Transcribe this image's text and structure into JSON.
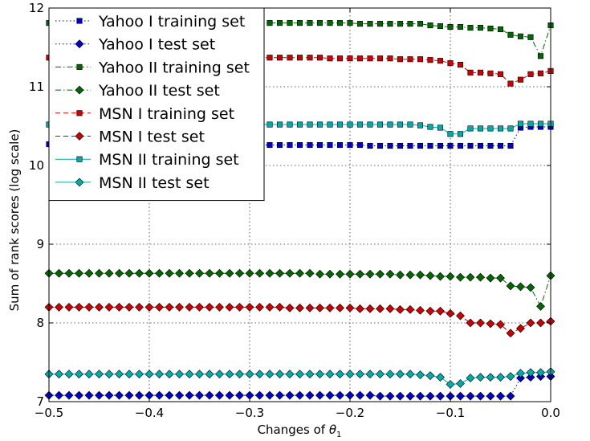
{
  "chart_data": {
    "type": "line",
    "xlabel": "Changes of",
    "xlabel_symbol": "θ",
    "xlabel_subscript": "1",
    "ylabel": "Sum of rank scores (log scale)",
    "xlim": [
      -0.5,
      0.0
    ],
    "ylim": [
      7,
      12
    ],
    "xticks": [
      -0.5,
      -0.4,
      -0.3,
      -0.2,
      -0.1,
      0.0
    ],
    "xtick_labels": [
      "−0.5",
      "−0.4",
      "−0.3",
      "−0.2",
      "−0.1",
      "0.0"
    ],
    "yticks": [
      7,
      8,
      9,
      10,
      11,
      12
    ],
    "ytick_labels": [
      "7",
      "8",
      "9",
      "10",
      "11",
      "12"
    ],
    "grid": true,
    "legend_position": "top-left",
    "x": [
      -0.5,
      -0.49,
      -0.48,
      -0.47,
      -0.46,
      -0.45,
      -0.44,
      -0.43,
      -0.42,
      -0.41,
      -0.4,
      -0.39,
      -0.38,
      -0.37,
      -0.36,
      -0.35,
      -0.34,
      -0.33,
      -0.32,
      -0.31,
      -0.3,
      -0.29,
      -0.28,
      -0.27,
      -0.26,
      -0.25,
      -0.24,
      -0.23,
      -0.22,
      -0.21,
      -0.2,
      -0.19,
      -0.18,
      -0.17,
      -0.16,
      -0.15,
      -0.14,
      -0.13,
      -0.12,
      -0.11,
      -0.1,
      -0.09,
      -0.08,
      -0.07,
      -0.06,
      -0.05,
      -0.04,
      -0.03,
      -0.02,
      -0.01,
      0.0
    ],
    "series": [
      {
        "name": "Yahoo I training set",
        "color": "#0000cc",
        "marker": "square",
        "linestyle": "dotted",
        "values": [
          10.27,
          10.27,
          10.27,
          10.27,
          10.27,
          10.27,
          10.27,
          10.27,
          10.27,
          10.27,
          10.27,
          10.27,
          10.27,
          10.27,
          10.27,
          10.27,
          10.27,
          10.27,
          10.27,
          10.27,
          10.26,
          10.26,
          10.26,
          10.26,
          10.26,
          10.26,
          10.26,
          10.26,
          10.26,
          10.26,
          10.26,
          10.26,
          10.25,
          10.25,
          10.25,
          10.25,
          10.25,
          10.25,
          10.25,
          10.25,
          10.25,
          10.25,
          10.25,
          10.25,
          10.25,
          10.25,
          10.25,
          10.48,
          10.49,
          10.49,
          10.49
        ]
      },
      {
        "name": "Yahoo I test set",
        "color": "#0000cc",
        "marker": "diamond",
        "linestyle": "dotted",
        "values": [
          7.08,
          7.08,
          7.08,
          7.08,
          7.08,
          7.08,
          7.08,
          7.08,
          7.08,
          7.08,
          7.08,
          7.08,
          7.08,
          7.08,
          7.08,
          7.08,
          7.08,
          7.08,
          7.08,
          7.08,
          7.08,
          7.08,
          7.08,
          7.08,
          7.08,
          7.08,
          7.08,
          7.08,
          7.08,
          7.08,
          7.08,
          7.08,
          7.08,
          7.07,
          7.07,
          7.07,
          7.07,
          7.07,
          7.07,
          7.07,
          7.07,
          7.07,
          7.07,
          7.07,
          7.07,
          7.07,
          7.07,
          7.3,
          7.31,
          7.32,
          7.32
        ]
      },
      {
        "name": "Yahoo II training set",
        "color": "#006600",
        "marker": "square",
        "linestyle": "dashdot",
        "values": [
          11.81,
          11.81,
          11.81,
          11.81,
          11.81,
          11.81,
          11.81,
          11.81,
          11.81,
          11.81,
          11.81,
          11.81,
          11.81,
          11.81,
          11.81,
          11.81,
          11.81,
          11.81,
          11.81,
          11.81,
          11.81,
          11.81,
          11.81,
          11.81,
          11.81,
          11.81,
          11.81,
          11.81,
          11.81,
          11.81,
          11.81,
          11.8,
          11.8,
          11.8,
          11.8,
          11.8,
          11.8,
          11.8,
          11.78,
          11.77,
          11.76,
          11.76,
          11.75,
          11.75,
          11.74,
          11.73,
          11.66,
          11.64,
          11.63,
          11.39,
          11.78
        ]
      },
      {
        "name": "Yahoo II test set",
        "color": "#006600",
        "marker": "diamond",
        "linestyle": "dashdot",
        "values": [
          8.63,
          8.63,
          8.63,
          8.63,
          8.63,
          8.63,
          8.63,
          8.63,
          8.63,
          8.63,
          8.63,
          8.63,
          8.63,
          8.63,
          8.63,
          8.63,
          8.63,
          8.63,
          8.63,
          8.63,
          8.63,
          8.63,
          8.63,
          8.63,
          8.63,
          8.63,
          8.63,
          8.62,
          8.62,
          8.62,
          8.62,
          8.62,
          8.62,
          8.62,
          8.62,
          8.61,
          8.61,
          8.61,
          8.6,
          8.59,
          8.59,
          8.58,
          8.58,
          8.58,
          8.57,
          8.57,
          8.47,
          8.46,
          8.45,
          8.21,
          8.6
        ]
      },
      {
        "name": "MSN I training set",
        "color": "#cc0000",
        "marker": "square",
        "linestyle": "dashed",
        "values": [
          11.37,
          11.37,
          11.37,
          11.37,
          11.37,
          11.37,
          11.37,
          11.37,
          11.37,
          11.37,
          11.37,
          11.37,
          11.37,
          11.37,
          11.37,
          11.37,
          11.37,
          11.37,
          11.37,
          11.37,
          11.37,
          11.37,
          11.37,
          11.37,
          11.37,
          11.37,
          11.37,
          11.37,
          11.36,
          11.36,
          11.36,
          11.36,
          11.36,
          11.36,
          11.36,
          11.35,
          11.35,
          11.35,
          11.34,
          11.33,
          11.3,
          11.28,
          11.18,
          11.18,
          11.17,
          11.16,
          11.04,
          11.09,
          11.16,
          11.17,
          11.2
        ]
      },
      {
        "name": "MSN I test set",
        "color": "#cc0000",
        "marker": "diamond",
        "linestyle": "dashed",
        "values": [
          8.2,
          8.2,
          8.2,
          8.2,
          8.2,
          8.2,
          8.2,
          8.2,
          8.2,
          8.2,
          8.2,
          8.2,
          8.2,
          8.2,
          8.2,
          8.2,
          8.2,
          8.2,
          8.2,
          8.2,
          8.2,
          8.2,
          8.2,
          8.2,
          8.19,
          8.19,
          8.19,
          8.19,
          8.19,
          8.19,
          8.19,
          8.18,
          8.18,
          8.18,
          8.18,
          8.17,
          8.17,
          8.16,
          8.15,
          8.15,
          8.12,
          8.09,
          8.0,
          8.0,
          7.99,
          7.98,
          7.87,
          7.93,
          8.0,
          8.0,
          8.02
        ]
      },
      {
        "name": "MSN II training set",
        "color": "#00aaaa",
        "marker": "square",
        "linestyle": "solid",
        "values": [
          10.52,
          10.52,
          10.52,
          10.52,
          10.52,
          10.52,
          10.52,
          10.52,
          10.52,
          10.52,
          10.52,
          10.52,
          10.52,
          10.52,
          10.52,
          10.52,
          10.52,
          10.52,
          10.52,
          10.52,
          10.52,
          10.52,
          10.52,
          10.52,
          10.52,
          10.52,
          10.52,
          10.52,
          10.52,
          10.52,
          10.52,
          10.52,
          10.52,
          10.52,
          10.52,
          10.52,
          10.52,
          10.51,
          10.49,
          10.48,
          10.4,
          10.4,
          10.47,
          10.47,
          10.47,
          10.47,
          10.47,
          10.53,
          10.53,
          10.53,
          10.53
        ]
      },
      {
        "name": "MSN II test set",
        "color": "#00aaaa",
        "marker": "diamond",
        "linestyle": "solid",
        "values": [
          7.35,
          7.35,
          7.35,
          7.35,
          7.35,
          7.35,
          7.35,
          7.35,
          7.35,
          7.35,
          7.35,
          7.35,
          7.35,
          7.35,
          7.35,
          7.35,
          7.35,
          7.35,
          7.35,
          7.35,
          7.35,
          7.35,
          7.35,
          7.35,
          7.35,
          7.35,
          7.35,
          7.35,
          7.35,
          7.35,
          7.35,
          7.35,
          7.35,
          7.35,
          7.35,
          7.35,
          7.35,
          7.34,
          7.33,
          7.31,
          7.22,
          7.23,
          7.3,
          7.31,
          7.31,
          7.31,
          7.32,
          7.36,
          7.37,
          7.37,
          7.38
        ]
      }
    ]
  }
}
